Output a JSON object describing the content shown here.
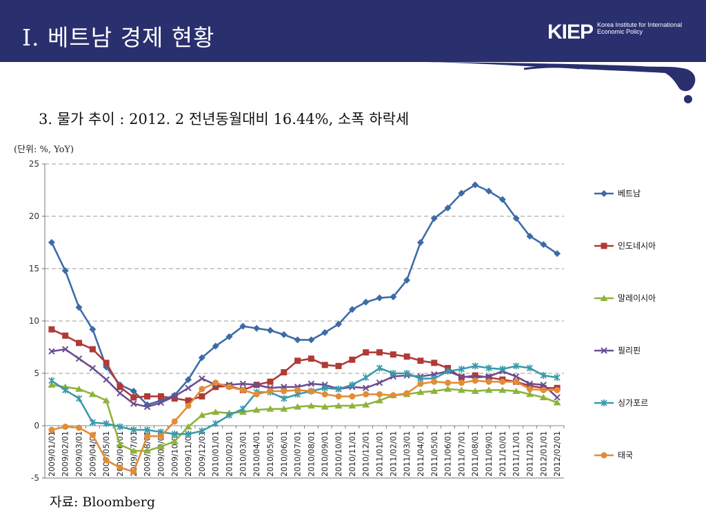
{
  "slide": {
    "title": "I. 베트남 경제 현황",
    "logo_text": "KIEP",
    "logo_subtext": "Korea Institute for International Economic Policy",
    "subtitle": "3. 물가 추이 : 2012. 2 전년동월대비 16.44%, 소폭 하락세",
    "unit_label": "(단위: %, YoY)",
    "source": "자료: Bloomberg",
    "banner_color": "#2a2f6e"
  },
  "chart_data": {
    "type": "line",
    "ylim": [
      -5,
      25
    ],
    "yticks": [
      -5,
      0,
      5,
      10,
      15,
      20,
      25
    ],
    "grid": "horizontal-dashed",
    "legend_position": "right",
    "x": [
      "2009/01/01",
      "2009/02/01",
      "2009/03/01",
      "2009/04/01",
      "2009/05/01",
      "2009/06/01",
      "2009/07/01",
      "2009/08/01",
      "2009/09/01",
      "2009/10/01",
      "2009/11/01",
      "2009/12/01",
      "2010/01/01",
      "2010/02/01",
      "2010/03/01",
      "2010/04/01",
      "2010/05/01",
      "2010/06/01",
      "2010/07/01",
      "2010/08/01",
      "2010/09/01",
      "2010/10/01",
      "2010/11/01",
      "2010/12/01",
      "2011/01/01",
      "2011/02/01",
      "2011/03/01",
      "2011/04/01",
      "2011/05/01",
      "2011/06/01",
      "2011/07/01",
      "2011/08/01",
      "2011/09/01",
      "2011/10/01",
      "2011/11/01",
      "2011/12/01",
      "2012/01/01",
      "2012/02/01"
    ],
    "series": [
      {
        "name": "베트남",
        "color": "#3d6ba8",
        "marker": "diamond",
        "values": [
          17.5,
          14.8,
          11.3,
          9.2,
          5.6,
          3.9,
          3.3,
          2.0,
          2.4,
          2.9,
          4.4,
          6.5,
          7.6,
          8.5,
          9.5,
          9.3,
          9.1,
          8.7,
          8.2,
          8.2,
          8.9,
          9.7,
          11.1,
          11.8,
          12.2,
          12.3,
          13.9,
          17.5,
          19.8,
          20.8,
          22.2,
          23.0,
          22.4,
          21.6,
          19.8,
          18.1,
          17.3,
          16.44
        ]
      },
      {
        "name": "인도네시아",
        "color": "#b03a35",
        "marker": "square",
        "values": [
          9.2,
          8.6,
          7.9,
          7.3,
          6.0,
          3.7,
          2.7,
          2.8,
          2.8,
          2.6,
          2.4,
          2.8,
          3.7,
          3.8,
          3.4,
          3.9,
          4.2,
          5.1,
          6.2,
          6.4,
          5.8,
          5.7,
          6.3,
          7.0,
          7.0,
          6.8,
          6.6,
          6.2,
          6.0,
          5.5,
          4.6,
          4.8,
          4.6,
          4.4,
          4.2,
          3.8,
          3.6,
          3.6
        ]
      },
      {
        "name": "말레이시아",
        "color": "#8eb33b",
        "marker": "triangle",
        "values": [
          3.9,
          3.7,
          3.5,
          3.0,
          2.4,
          -1.8,
          -2.4,
          -2.4,
          -2.0,
          -1.5,
          -0.1,
          1.0,
          1.3,
          1.2,
          1.3,
          1.5,
          1.6,
          1.6,
          1.8,
          1.9,
          1.8,
          1.9,
          1.9,
          2.0,
          2.4,
          2.9,
          3.0,
          3.2,
          3.3,
          3.5,
          3.4,
          3.3,
          3.4,
          3.4,
          3.3,
          3.0,
          2.7,
          2.2
        ]
      },
      {
        "name": "필리핀",
        "color": "#6b4d91",
        "marker": "x",
        "values": [
          7.1,
          7.3,
          6.4,
          5.5,
          4.4,
          3.1,
          2.1,
          1.8,
          2.2,
          2.8,
          3.6,
          4.5,
          3.9,
          3.9,
          4.0,
          3.9,
          3.6,
          3.7,
          3.7,
          4.0,
          3.9,
          3.5,
          3.7,
          3.6,
          4.1,
          4.7,
          4.8,
          4.7,
          4.9,
          5.2,
          4.7,
          4.6,
          4.7,
          5.2,
          4.7,
          4.0,
          3.9,
          2.7
        ]
      },
      {
        "name": "싱가포르",
        "color": "#3a9aaa",
        "marker": "star",
        "values": [
          4.3,
          3.4,
          2.6,
          0.3,
          0.2,
          -0.1,
          -0.4,
          -0.4,
          -0.6,
          -0.8,
          -0.8,
          -0.5,
          0.2,
          1.0,
          1.6,
          3.2,
          3.2,
          2.6,
          3.0,
          3.3,
          3.6,
          3.5,
          3.9,
          4.6,
          5.5,
          5.0,
          5.0,
          4.5,
          4.5,
          5.2,
          5.4,
          5.7,
          5.5,
          5.4,
          5.7,
          5.5,
          4.8,
          4.6
        ]
      },
      {
        "name": "태국",
        "color": "#e38c36",
        "marker": "circle",
        "values": [
          -0.4,
          -0.1,
          -0.2,
          -0.9,
          -3.3,
          -4.0,
          -4.4,
          -1.0,
          -1.0,
          0.4,
          1.9,
          3.5,
          4.1,
          3.7,
          3.4,
          3.0,
          3.3,
          3.3,
          3.4,
          3.3,
          3.0,
          2.8,
          2.8,
          3.0,
          3.0,
          2.9,
          3.1,
          4.0,
          4.2,
          4.1,
          4.1,
          4.3,
          4.2,
          4.2,
          4.2,
          3.5,
          3.4,
          3.4
        ]
      }
    ]
  }
}
